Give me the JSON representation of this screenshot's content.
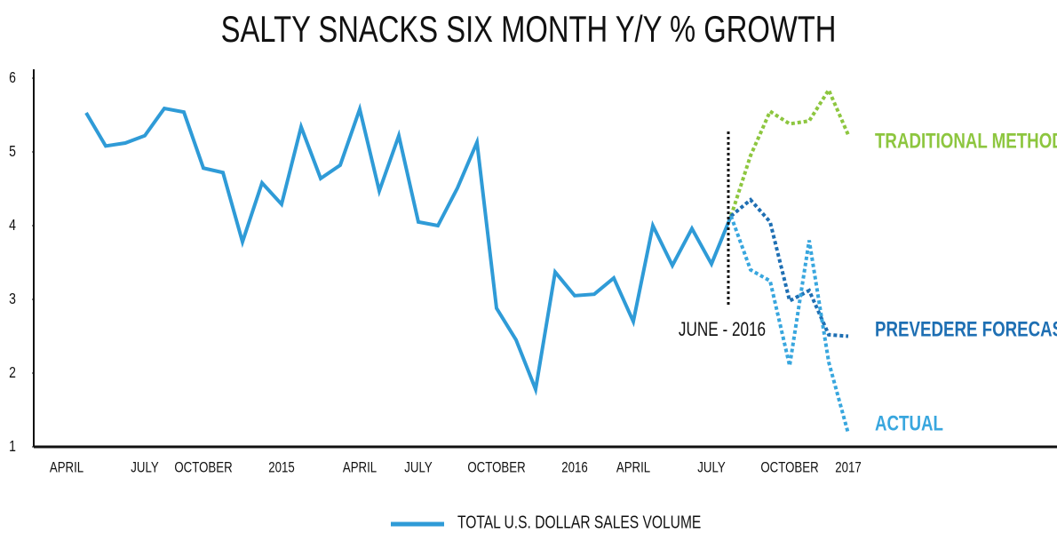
{
  "chart_data": {
    "type": "line",
    "title": "SALTY SNACKS SIX MONTH Y/Y % GROWTH",
    "annotation": "JUNE - 2016",
    "legend": "bottom",
    "categories": [
      "APRIL",
      null,
      null,
      null,
      "JULY",
      null,
      null,
      "OCTOBER",
      null,
      null,
      null,
      "2015",
      null,
      null,
      null,
      "APRIL",
      null,
      null,
      "JULY",
      null,
      null,
      null,
      "OCTOBER",
      null,
      null,
      null,
      "2016",
      null,
      null,
      "APRIL",
      null,
      null,
      null,
      "JULY",
      null,
      null,
      null,
      "OCTOBER",
      null,
      null,
      "2017"
    ],
    "series": [
      {
        "name": "TOTAL U.S. DOLLAR SALES VOLUME",
        "color": "#2f9bd7",
        "dashed": false,
        "values": [
          null,
          5.53,
          5.08,
          5.12,
          5.22,
          5.59,
          5.54,
          4.78,
          4.72,
          3.78,
          4.58,
          4.29,
          5.34,
          4.64,
          4.82,
          5.58,
          4.47,
          5.22,
          4.05,
          4.0,
          4.51,
          5.13,
          2.88,
          2.45,
          1.78,
          3.37,
          3.05,
          3.07,
          3.29,
          2.7,
          4.0,
          3.46,
          3.96,
          3.48,
          4.13,
          null,
          null,
          null,
          null,
          null,
          null
        ]
      },
      {
        "name": "TRADITIONAL METHOD",
        "color": "#8dc63f",
        "dashed": true,
        "values": [
          null,
          null,
          null,
          null,
          null,
          null,
          null,
          null,
          null,
          null,
          null,
          null,
          null,
          null,
          null,
          null,
          null,
          null,
          null,
          null,
          null,
          null,
          null,
          null,
          null,
          null,
          null,
          null,
          null,
          null,
          null,
          null,
          null,
          null,
          4.13,
          4.95,
          5.55,
          5.38,
          5.42,
          5.84,
          5.23
        ]
      },
      {
        "name": "PREVEDERE FORECAST",
        "color": "#1e6fb3",
        "dashed": true,
        "values": [
          null,
          null,
          null,
          null,
          null,
          null,
          null,
          null,
          null,
          null,
          null,
          null,
          null,
          null,
          null,
          null,
          null,
          null,
          null,
          null,
          null,
          null,
          null,
          null,
          null,
          null,
          null,
          null,
          null,
          null,
          null,
          null,
          null,
          null,
          4.13,
          4.35,
          4.05,
          2.98,
          3.12,
          2.52,
          2.5
        ]
      },
      {
        "name": "ACTUAL",
        "color": "#38a6de",
        "dashed": true,
        "values": [
          null,
          null,
          null,
          null,
          null,
          null,
          null,
          null,
          null,
          null,
          null,
          null,
          null,
          null,
          null,
          null,
          null,
          null,
          null,
          null,
          null,
          null,
          null,
          null,
          null,
          null,
          null,
          null,
          null,
          null,
          null,
          null,
          null,
          null,
          4.13,
          3.4,
          3.25,
          2.1,
          3.8,
          2.15,
          1.18
        ]
      }
    ],
    "ylim": [
      1,
      6
    ],
    "yticks": [
      1,
      2,
      3,
      4,
      5,
      6
    ],
    "grid": false
  }
}
